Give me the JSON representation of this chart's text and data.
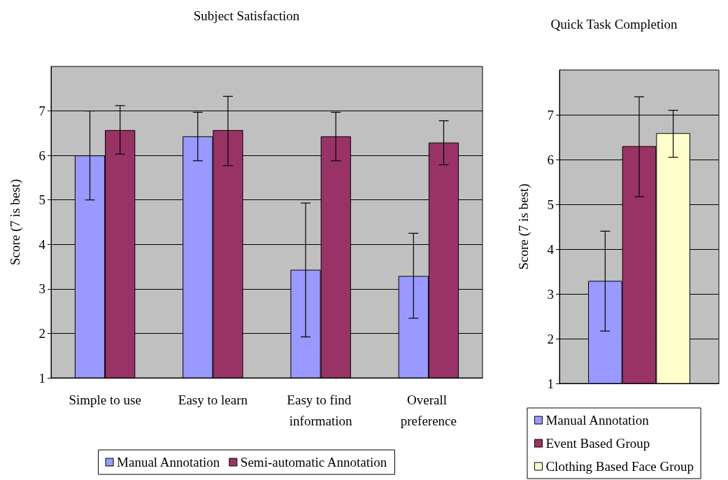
{
  "chart_data": [
    {
      "type": "bar",
      "title": "Subject Satisfaction",
      "ylabel": "Score (7 is best)",
      "categories": [
        "Simple to use",
        "Easy to learn",
        "Easy to find information",
        "Overall preference"
      ],
      "ylim": [
        1,
        8
      ],
      "yticks": [
        1,
        2,
        3,
        4,
        5,
        6,
        7
      ],
      "grid": "y",
      "legend": "bottom",
      "series": [
        {
          "name": "Manual Annotation",
          "color": "#9999ff",
          "values": [
            6.0,
            6.43,
            3.43,
            3.29
          ],
          "errors": [
            [
              5.0,
              7.0
            ],
            [
              5.88,
              6.97
            ],
            [
              1.92,
              4.93
            ],
            [
              2.34,
              4.25
            ]
          ]
        },
        {
          "name": "Semi-automatic Annotation",
          "color": "#993366",
          "values": [
            6.57,
            6.57,
            6.43,
            6.29
          ],
          "errors": [
            [
              6.03,
              7.12
            ],
            [
              5.77,
              7.33
            ],
            [
              5.88,
              6.97
            ],
            [
              5.79,
              6.78
            ]
          ]
        }
      ]
    },
    {
      "type": "bar",
      "title": "Quick Task Completion",
      "ylabel": "Score (7 is best)",
      "categories": [
        null
      ],
      "ylim": [
        1,
        8
      ],
      "yticks": [
        1,
        2,
        3,
        4,
        5,
        6,
        7
      ],
      "grid": "y",
      "legend": "bottom",
      "series": [
        {
          "name": "Manual Annotation",
          "color": "#9999ff",
          "values": [
            3.29
          ],
          "errors": [
            [
              2.17,
              4.4
            ]
          ]
        },
        {
          "name": "Event Based Group",
          "color": "#993366",
          "values": [
            6.3
          ],
          "errors": [
            [
              5.17,
              7.4
            ]
          ]
        },
        {
          "name": "Clothing Based Face Group",
          "color": "#ffffcc",
          "values": [
            6.59
          ],
          "errors": [
            [
              6.05,
              7.1
            ]
          ]
        }
      ]
    }
  ]
}
